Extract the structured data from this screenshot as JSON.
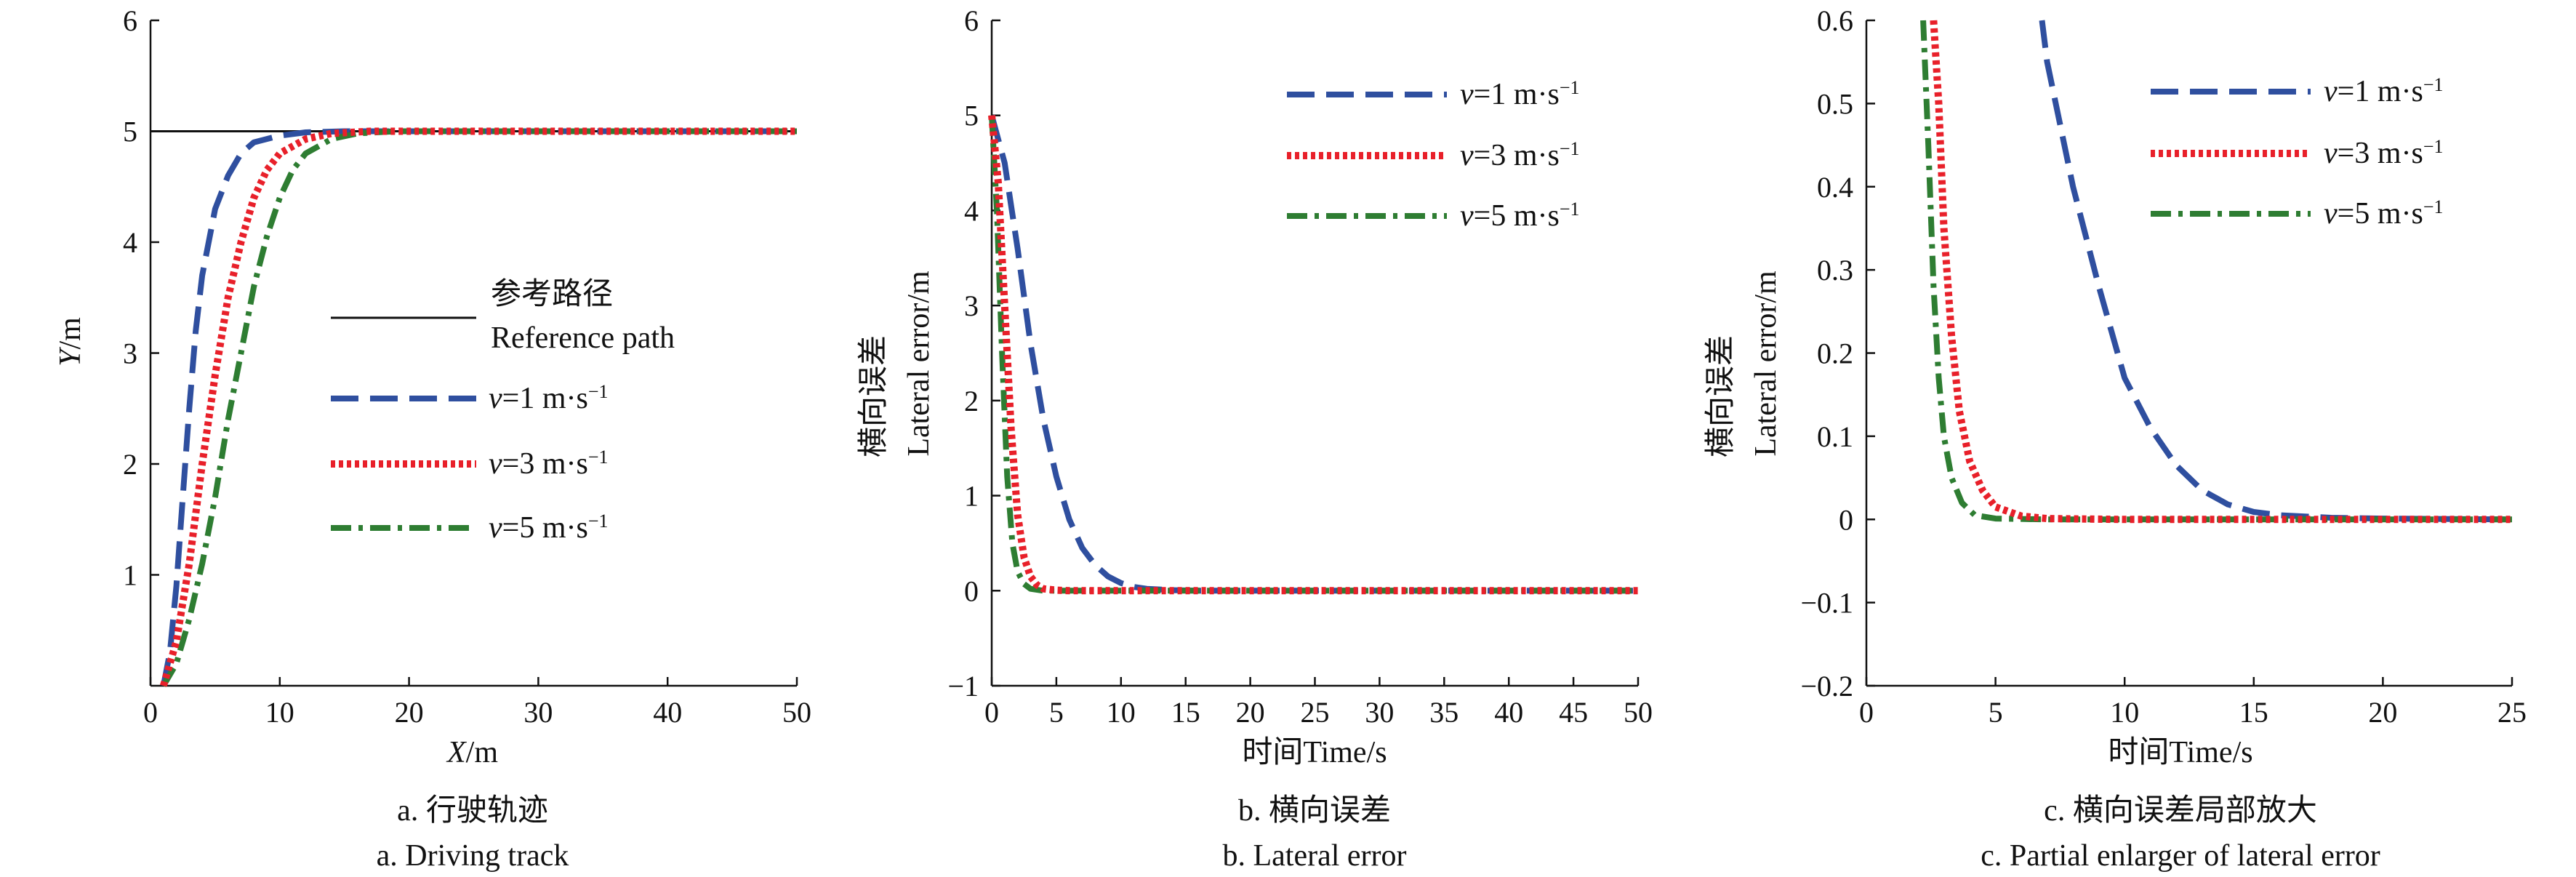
{
  "colors": {
    "reference": "#111111",
    "v1": "#2f4f9f",
    "v3": "#e8202a",
    "v5": "#2e7d32"
  },
  "chart_data": [
    {
      "type": "line",
      "title_zh": "a. 行驶轨迹",
      "title_en": "a. Driving track",
      "xlabel": "X/m",
      "xlabel_var": "X",
      "xlabel_unit": "/m",
      "ylabel": "Y/m",
      "ylabel_var": "Y",
      "ylabel_unit": "/m",
      "xlim": [
        0,
        50
      ],
      "ylim": [
        0,
        6
      ],
      "xticks": [
        0,
        10,
        20,
        30,
        40,
        50
      ],
      "yticks": [
        1,
        2,
        3,
        4,
        5,
        6
      ],
      "legend_position": "center",
      "legend": [
        {
          "key": "reference",
          "label_zh": "参考路径",
          "label_en": "Reference path"
        },
        {
          "key": "v1",
          "label": "v=1 m·s−1"
        },
        {
          "key": "v3",
          "label": "v=3 m·s−1"
        },
        {
          "key": "v5",
          "label": "v=5 m·s−1"
        }
      ],
      "series": [
        {
          "key": "reference",
          "name": "参考路径 Reference path",
          "style": "solid",
          "points": [
            [
              0,
              5
            ],
            [
              50,
              5
            ]
          ]
        },
        {
          "key": "v1",
          "name": "v=1 m·s−1",
          "style": "dashed",
          "points": [
            [
              1,
              0
            ],
            [
              1.5,
              0.3
            ],
            [
              2,
              0.9
            ],
            [
              2.5,
              1.7
            ],
            [
              3,
              2.5
            ],
            [
              3.5,
              3.2
            ],
            [
              4,
              3.7
            ],
            [
              5,
              4.3
            ],
            [
              6,
              4.6
            ],
            [
              7,
              4.8
            ],
            [
              8,
              4.9
            ],
            [
              10,
              4.96
            ],
            [
              12,
              4.99
            ],
            [
              15,
              5
            ],
            [
              50,
              5
            ]
          ]
        },
        {
          "key": "v3",
          "name": "v=3 m·s−1",
          "style": "dotted",
          "points": [
            [
              1,
              0
            ],
            [
              2,
              0.4
            ],
            [
              3,
              1.1
            ],
            [
              4,
              2.0
            ],
            [
              5,
              2.8
            ],
            [
              6,
              3.5
            ],
            [
              7,
              4.0
            ],
            [
              8,
              4.4
            ],
            [
              9,
              4.65
            ],
            [
              10,
              4.8
            ],
            [
              12,
              4.93
            ],
            [
              14,
              4.98
            ],
            [
              17,
              5
            ],
            [
              50,
              5
            ]
          ]
        },
        {
          "key": "v5",
          "name": "v=5 m·s−1",
          "style": "dashdot",
          "points": [
            [
              1,
              0
            ],
            [
              2,
              0.2
            ],
            [
              3,
              0.6
            ],
            [
              4,
              1.1
            ],
            [
              5,
              1.7
            ],
            [
              6,
              2.4
            ],
            [
              7,
              3.0
            ],
            [
              8,
              3.6
            ],
            [
              9,
              4.05
            ],
            [
              10,
              4.4
            ],
            [
              11,
              4.65
            ],
            [
              12,
              4.8
            ],
            [
              14,
              4.93
            ],
            [
              16,
              4.98
            ],
            [
              19,
              5
            ],
            [
              50,
              5
            ]
          ]
        }
      ]
    },
    {
      "type": "line",
      "title_zh": "b. 横向误差",
      "title_en": "b. Lateral error",
      "xlabel": "时间Time/s",
      "ylabel_zh": "横向误差",
      "ylabel_en": "Lateral error/m",
      "xlim": [
        0,
        50
      ],
      "ylim": [
        -1,
        6
      ],
      "xticks": [
        0,
        5,
        10,
        15,
        20,
        25,
        30,
        35,
        40,
        45,
        50
      ],
      "yticks": [
        -1,
        0,
        1,
        2,
        3,
        4,
        5,
        6
      ],
      "ytick_labels": [
        "−1",
        "0",
        "1",
        "2",
        "3",
        "4",
        "5",
        "6"
      ],
      "legend_position": "top-right",
      "legend": [
        {
          "key": "v1",
          "label": "v=1 m·s−1"
        },
        {
          "key": "v3",
          "label": "v=3 m·s−1"
        },
        {
          "key": "v5",
          "label": "v=5 m·s−1"
        }
      ],
      "series": [
        {
          "key": "v1",
          "name": "v=1 m·s−1",
          "style": "dashed",
          "points": [
            [
              0,
              5
            ],
            [
              1,
              4.5
            ],
            [
              2,
              3.6
            ],
            [
              3,
              2.6
            ],
            [
              4,
              1.8
            ],
            [
              5,
              1.2
            ],
            [
              6,
              0.75
            ],
            [
              7,
              0.45
            ],
            [
              8,
              0.27
            ],
            [
              9,
              0.15
            ],
            [
              10,
              0.08
            ],
            [
              11,
              0.04
            ],
            [
              12,
              0.02
            ],
            [
              14,
              0.005
            ],
            [
              16,
              0
            ],
            [
              50,
              0
            ]
          ]
        },
        {
          "key": "v3",
          "name": "v=3 m·s−1",
          "style": "dotted",
          "points": [
            [
              0,
              5
            ],
            [
              0.5,
              4.3
            ],
            [
              1,
              3.0
            ],
            [
              1.5,
              1.7
            ],
            [
              2,
              0.8
            ],
            [
              2.5,
              0.35
            ],
            [
              3,
              0.15
            ],
            [
              3.5,
              0.06
            ],
            [
              4,
              0.02
            ],
            [
              5,
              0.005
            ],
            [
              6,
              0
            ],
            [
              50,
              0
            ]
          ]
        },
        {
          "key": "v5",
          "name": "v=5 m·s−1",
          "style": "dashdot",
          "points": [
            [
              0,
              5
            ],
            [
              0.4,
              4.0
            ],
            [
              0.8,
              2.5
            ],
            [
              1.2,
              1.2
            ],
            [
              1.6,
              0.5
            ],
            [
              2,
              0.2
            ],
            [
              2.5,
              0.07
            ],
            [
              3,
              0.02
            ],
            [
              4,
              0
            ],
            [
              50,
              0
            ]
          ]
        }
      ]
    },
    {
      "type": "line",
      "title_zh": "c. 横向误差局部放大",
      "title_en": "c. Partial enlarger of lateral error",
      "xlabel": "时间Time/s",
      "ylabel_zh": "横向误差",
      "ylabel_en": "Lateral error/m",
      "xlim": [
        0,
        25
      ],
      "ylim": [
        -0.2,
        0.6
      ],
      "xticks": [
        0,
        5,
        10,
        15,
        20,
        25
      ],
      "yticks": [
        -0.2,
        -0.1,
        0,
        0.1,
        0.2,
        0.3,
        0.4,
        0.5,
        0.6
      ],
      "ytick_labels": [
        "−0.2",
        "−0.1",
        "0",
        "0.1",
        "0.2",
        "0.3",
        "0.4",
        "0.5",
        "0.6"
      ],
      "legend_position": "top-right",
      "legend": [
        {
          "key": "v1",
          "label": "v=1 m·s−1"
        },
        {
          "key": "v3",
          "label": "v=3 m·s−1"
        },
        {
          "key": "v5",
          "label": "v=5 m·s−1"
        }
      ],
      "series": [
        {
          "key": "v1",
          "name": "v=1 m·s−1",
          "style": "dashed",
          "points": [
            [
              6.8,
              0.6
            ],
            [
              7,
              0.55
            ],
            [
              8,
              0.4
            ],
            [
              9,
              0.28
            ],
            [
              10,
              0.17
            ],
            [
              11,
              0.11
            ],
            [
              12,
              0.065
            ],
            [
              13,
              0.035
            ],
            [
              14,
              0.018
            ],
            [
              15,
              0.009
            ],
            [
              16,
              0.005
            ],
            [
              18,
              0.002
            ],
            [
              20,
              0.001
            ],
            [
              25,
              0
            ]
          ]
        },
        {
          "key": "v3",
          "name": "v=3 m·s−1",
          "style": "dotted",
          "points": [
            [
              2.6,
              0.6
            ],
            [
              2.8,
              0.5
            ],
            [
              3,
              0.35
            ],
            [
              3.3,
              0.22
            ],
            [
              3.6,
              0.13
            ],
            [
              4,
              0.07
            ],
            [
              4.5,
              0.035
            ],
            [
              5,
              0.015
            ],
            [
              6,
              0.004
            ],
            [
              7,
              0.001
            ],
            [
              10,
              0
            ],
            [
              25,
              0
            ]
          ]
        },
        {
          "key": "v5",
          "name": "v=5 m·s−1",
          "style": "dashdot",
          "points": [
            [
              2.2,
              0.6
            ],
            [
              2.4,
              0.45
            ],
            [
              2.6,
              0.28
            ],
            [
              2.8,
              0.17
            ],
            [
              3,
              0.1
            ],
            [
              3.3,
              0.05
            ],
            [
              3.7,
              0.02
            ],
            [
              4.2,
              0.005
            ],
            [
              5,
              0.001
            ],
            [
              7,
              0
            ],
            [
              25,
              0
            ]
          ]
        }
      ]
    }
  ]
}
